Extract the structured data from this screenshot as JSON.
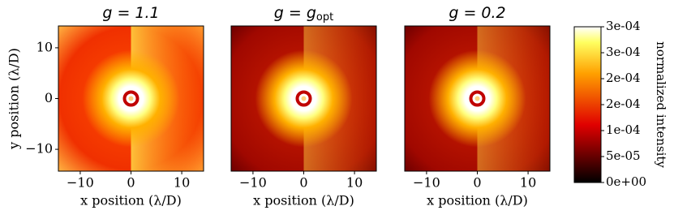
{
  "chart_data": [
    {
      "type": "heatmap",
      "title": "g = 1.1",
      "xlabel": "x position (λ/D)",
      "ylabel": "y position (λ/D)",
      "xlim": [
        -14.3,
        14.3
      ],
      "ylim": [
        -14.3,
        14.3
      ],
      "xticks": [
        {
          "value": -10,
          "label": "−10"
        },
        0,
        10
      ],
      "yticks": [
        {
          "value": -10,
          "label": "−10"
        },
        0,
        10
      ],
      "colorbar": {
        "label": "normalized intensity",
        "lim": [
          0,
          0.0003
        ],
        "ticks": [
          {
            "value": 0,
            "label": "0e+00"
          },
          {
            "value": 5e-05,
            "label": "5e-05"
          },
          {
            "value": 0.0001,
            "label": "1e-04"
          },
          {
            "value": 0.00015,
            "label": "2e-04"
          },
          {
            "value": 0.0002,
            "label": "2e-04"
          },
          {
            "value": 0.00025,
            "label": "3e-04"
          },
          {
            "value": 0.0003,
            "label": "3e-04"
          }
        ]
      }
    },
    {
      "type": "heatmap",
      "title": "g = g",
      "title_subscript": "opt",
      "xlabel": "x position (λ/D)",
      "xlim": [
        -14.3,
        14.3
      ],
      "ylim": [
        -14.3,
        14.3
      ],
      "xticks": [
        {
          "value": -10,
          "label": "−10"
        },
        0,
        10
      ]
    },
    {
      "type": "heatmap",
      "title": "g = 0.2",
      "xlabel": "x position (λ/D)",
      "xlim": [
        -14.3,
        14.3
      ],
      "ylim": [
        -14.3,
        14.3
      ],
      "xticks": [
        {
          "value": -10,
          "label": "−10"
        },
        0,
        10
      ]
    }
  ]
}
